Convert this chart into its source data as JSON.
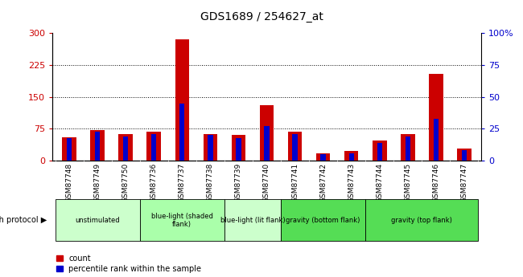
{
  "title": "GDS1689 / 254627_at",
  "samples": [
    "GSM87748",
    "GSM87749",
    "GSM87750",
    "GSM87736",
    "GSM87737",
    "GSM87738",
    "GSM87739",
    "GSM87740",
    "GSM87741",
    "GSM87742",
    "GSM87743",
    "GSM87744",
    "GSM87745",
    "GSM87746",
    "GSM87747"
  ],
  "count_values": [
    55,
    72,
    62,
    68,
    285,
    62,
    60,
    130,
    68,
    18,
    22,
    48,
    62,
    205,
    28
  ],
  "percentile_values": [
    18,
    23,
    19,
    21,
    45,
    20,
    18,
    27,
    21,
    5,
    6,
    14,
    19,
    33,
    8
  ],
  "groups": [
    {
      "label": "unstimulated",
      "start": 0,
      "end": 3,
      "color": "#ccffcc"
    },
    {
      "label": "blue-light (shaded\nflank)",
      "start": 3,
      "end": 6,
      "color": "#aaffaa"
    },
    {
      "label": "blue-light (lit flank)",
      "start": 6,
      "end": 8,
      "color": "#ccffcc"
    },
    {
      "label": "gravity (bottom flank)",
      "start": 8,
      "end": 11,
      "color": "#55dd55"
    },
    {
      "label": "gravity (top flank)",
      "start": 11,
      "end": 15,
      "color": "#55dd55"
    }
  ],
  "left_ylim": [
    0,
    300
  ],
  "right_ylim": [
    0,
    100
  ],
  "left_yticks": [
    0,
    75,
    150,
    225,
    300
  ],
  "right_yticks": [
    0,
    25,
    50,
    75,
    100
  ],
  "right_yticklabels": [
    "0",
    "25",
    "50",
    "75",
    "100%"
  ],
  "left_color": "#cc0000",
  "right_color": "#0000cc",
  "red_bar_width": 0.5,
  "blue_bar_width": 0.18,
  "group_label": "growth protocol",
  "legend_count": "count",
  "legend_pct": "percentile rank within the sample",
  "dotted_grid_yticks": [
    75,
    150,
    225
  ],
  "tick_label_bg": "#cccccc",
  "group_row_colors": [
    "#ccffcc",
    "#aaffaa",
    "#ccffcc",
    "#55dd55",
    "#55dd55"
  ]
}
